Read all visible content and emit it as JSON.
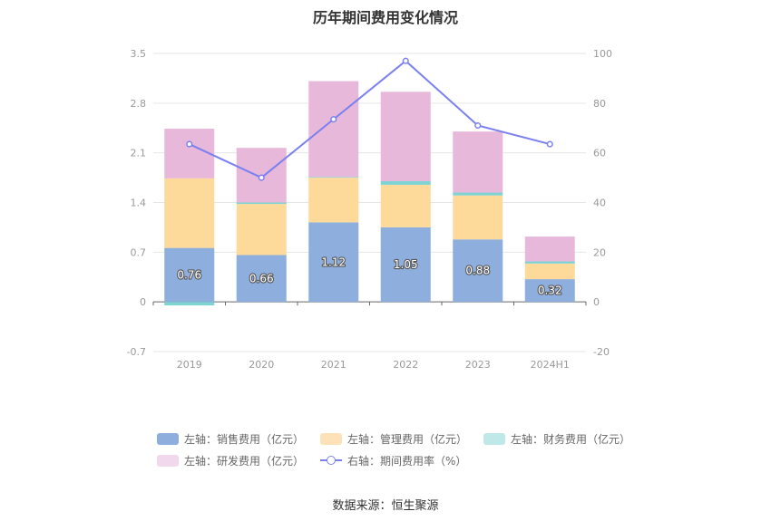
{
  "chart_data": {
    "type": "bar",
    "title": "历年期间费用变化情况",
    "categories": [
      "2019",
      "2020",
      "2021",
      "2022",
      "2023",
      "2024H1"
    ],
    "left_axis": {
      "min": -0.7,
      "max": 3.5,
      "ticks": [
        "3.5",
        "2.8",
        "2.1",
        "1.4",
        "0.7",
        "0",
        "-0.7"
      ]
    },
    "right_axis": {
      "min": -20,
      "max": 100,
      "ticks": [
        "100",
        "80",
        "60",
        "40",
        "20",
        "0",
        "-20"
      ]
    },
    "series": [
      {
        "name": "左轴：销售费用（亿元）",
        "type": "bar",
        "stack": true,
        "color": "#8eaedd",
        "values": [
          0.76,
          0.66,
          1.12,
          1.05,
          0.88,
          0.32
        ],
        "labels": [
          "0.76",
          "0.66",
          "1.12",
          "1.05",
          "0.88",
          "0.32"
        ]
      },
      {
        "name": "左轴：管理费用（亿元）",
        "type": "bar",
        "stack": true,
        "color": "#fdd99a",
        "values": [
          0.98,
          0.72,
          0.63,
          0.6,
          0.62,
          0.22
        ]
      },
      {
        "name": "左轴：财务费用（亿元）",
        "type": "bar",
        "stack": true,
        "color": "#7ed3d3",
        "values": [
          -0.05,
          0.02,
          0.01,
          0.05,
          0.04,
          0.03
        ]
      },
      {
        "name": "左轴：研发费用（亿元）",
        "type": "bar",
        "stack": true,
        "color": "#e8b8da",
        "values": [
          0.7,
          0.77,
          1.35,
          1.26,
          0.86,
          0.35
        ]
      },
      {
        "name": "右轴：期间费用率（%）",
        "type": "line",
        "axis": "right",
        "color": "#7a80ef",
        "values": [
          63.5,
          50.0,
          73.5,
          97.0,
          71.0,
          63.5
        ]
      }
    ],
    "grid": true,
    "legend_position": "bottom"
  },
  "source_label": "数据来源：恒生聚源",
  "legend": {
    "sales": "左轴：销售费用（亿元）",
    "admin": "左轴：管理费用（亿元）",
    "finance": "左轴：财务费用（亿元）",
    "rnd": "左轴：研发费用（亿元）",
    "rate": "右轴：期间费用率（%）"
  }
}
